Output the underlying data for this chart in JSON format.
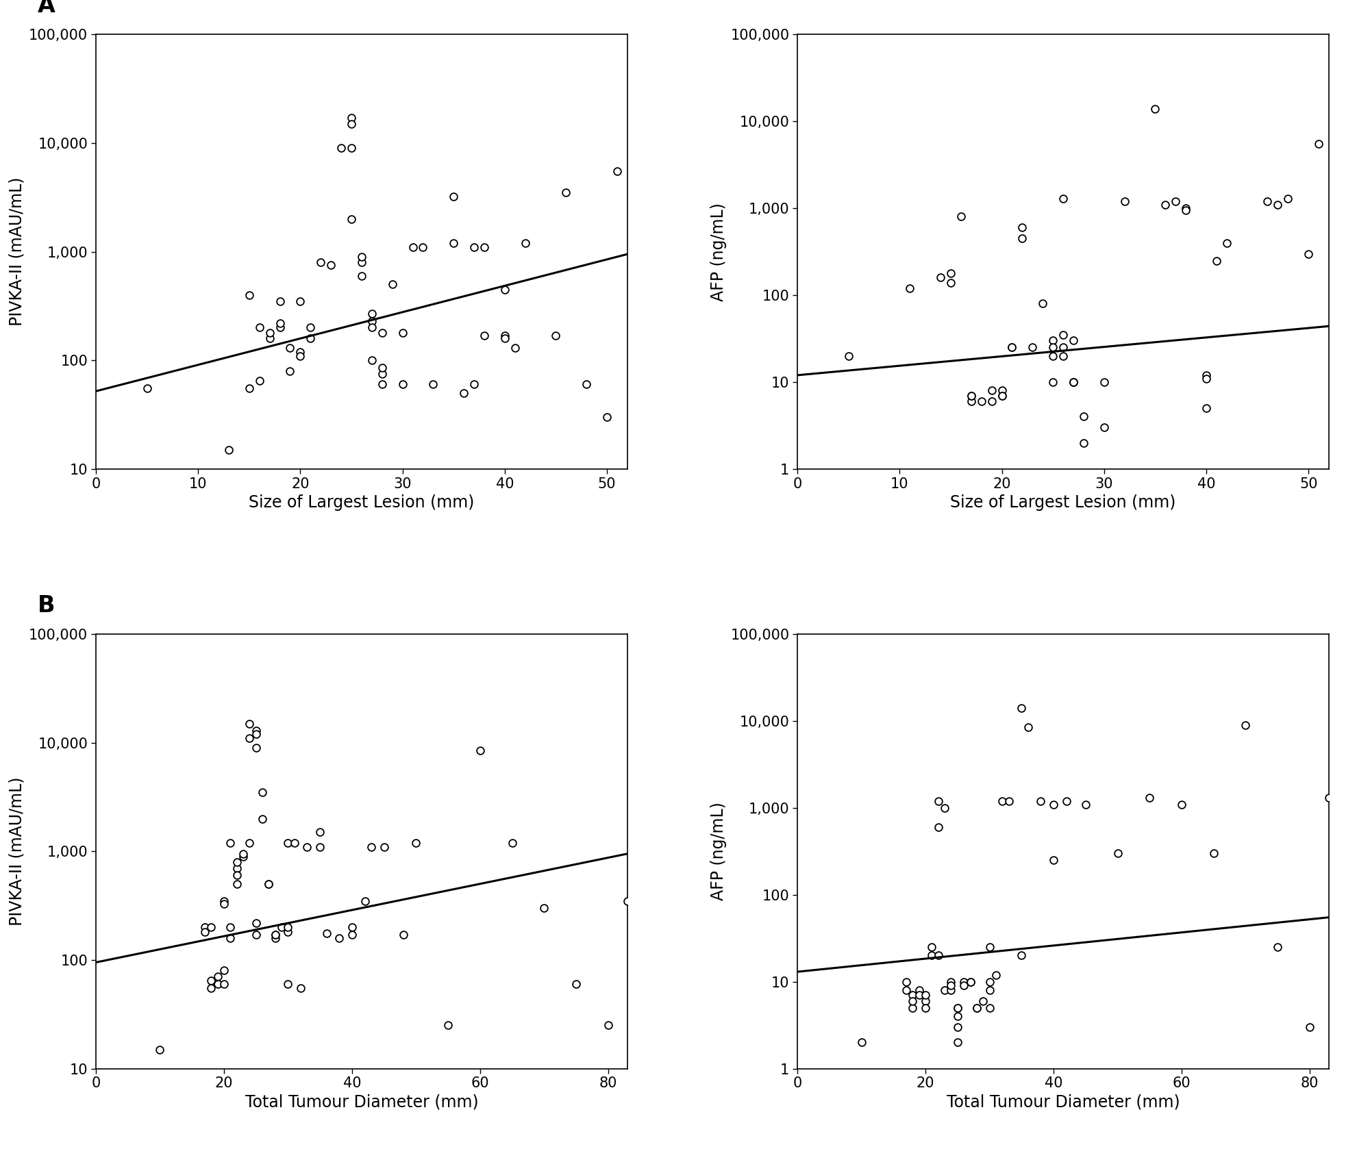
{
  "panel_A_pivka": {
    "x": [
      5,
      13,
      15,
      15,
      16,
      16,
      17,
      17,
      18,
      18,
      18,
      19,
      19,
      20,
      20,
      20,
      21,
      21,
      22,
      23,
      24,
      25,
      25,
      25,
      25,
      26,
      26,
      26,
      27,
      27,
      27,
      27,
      28,
      28,
      28,
      28,
      29,
      30,
      30,
      31,
      32,
      33,
      35,
      35,
      36,
      37,
      37,
      38,
      38,
      40,
      40,
      40,
      41,
      42,
      45,
      46,
      48,
      50,
      51
    ],
    "y": [
      55,
      15,
      400,
      55,
      65,
      200,
      160,
      180,
      200,
      220,
      350,
      80,
      130,
      350,
      120,
      110,
      160,
      200,
      800,
      750,
      9000,
      17000,
      15000,
      9000,
      2000,
      800,
      900,
      600,
      230,
      270,
      200,
      100,
      180,
      60,
      75,
      85,
      500,
      60,
      180,
      1100,
      1100,
      60,
      3200,
      1200,
      50,
      60,
      1100,
      1100,
      170,
      450,
      170,
      160,
      130,
      1200,
      170,
      3500,
      60,
      30,
      5500
    ],
    "line_x": [
      0,
      52
    ],
    "line_y": [
      52,
      950
    ],
    "xlabel": "Size of Largest Lesion (mm)",
    "ylabel": "PIVKA-II (mAU/mL)",
    "ylim": [
      10,
      100000
    ],
    "xlim": [
      0,
      52
    ],
    "yticks": [
      10,
      100,
      1000,
      10000,
      100000
    ],
    "ytick_labels": [
      "10",
      "100",
      "1,000",
      "10,000",
      "100,000"
    ],
    "xticks": [
      0,
      10,
      20,
      30,
      40,
      50
    ]
  },
  "panel_A_afp": {
    "x": [
      5,
      11,
      14,
      15,
      15,
      16,
      17,
      17,
      17,
      18,
      19,
      19,
      20,
      20,
      20,
      21,
      21,
      22,
      22,
      23,
      24,
      25,
      25,
      25,
      25,
      26,
      26,
      26,
      26,
      27,
      27,
      27,
      27,
      28,
      28,
      30,
      30,
      32,
      35,
      36,
      37,
      38,
      38,
      40,
      40,
      40,
      41,
      42,
      46,
      47,
      48,
      50,
      51
    ],
    "y": [
      20,
      120,
      160,
      140,
      180,
      800,
      6,
      7,
      7,
      6,
      6,
      8,
      8,
      7,
      7,
      25,
      25,
      600,
      450,
      25,
      80,
      30,
      25,
      20,
      10,
      35,
      25,
      20,
      1300,
      10,
      10,
      10,
      30,
      4,
      2,
      3,
      10,
      1200,
      14000,
      1100,
      1200,
      1000,
      950,
      5,
      12,
      11,
      250,
      400,
      1200,
      1100,
      1300,
      300,
      5500
    ],
    "line_x": [
      0,
      52
    ],
    "line_y": [
      12,
      44
    ],
    "xlabel": "Size of Largest Lesion (mm)",
    "ylabel": "AFP (ng/mL)",
    "ylim": [
      1,
      100000
    ],
    "xlim": [
      0,
      52
    ],
    "yticks": [
      1,
      10,
      100,
      1000,
      10000,
      100000
    ],
    "ytick_labels": [
      "1",
      "10",
      "100",
      "1,000",
      "10,000",
      "100,000"
    ],
    "xticks": [
      0,
      10,
      20,
      30,
      40,
      50
    ]
  },
  "panel_B_pivka": {
    "x": [
      10,
      17,
      17,
      18,
      18,
      18,
      19,
      19,
      20,
      20,
      20,
      20,
      21,
      21,
      21,
      22,
      22,
      22,
      22,
      23,
      23,
      24,
      24,
      24,
      25,
      25,
      25,
      25,
      25,
      26,
      26,
      27,
      27,
      28,
      28,
      28,
      29,
      30,
      30,
      30,
      30,
      31,
      32,
      33,
      35,
      35,
      36,
      38,
      40,
      40,
      42,
      43,
      45,
      48,
      50,
      55,
      60,
      65,
      70,
      75,
      80,
      83
    ],
    "y": [
      15,
      200,
      180,
      200,
      55,
      65,
      60,
      70,
      60,
      80,
      350,
      330,
      200,
      1200,
      160,
      700,
      600,
      800,
      500,
      900,
      950,
      1200,
      11000,
      15000,
      220,
      170,
      13000,
      12000,
      9000,
      3500,
      2000,
      500,
      500,
      160,
      170,
      170,
      200,
      60,
      180,
      200,
      1200,
      1200,
      55,
      1100,
      1100,
      1500,
      175,
      160,
      170,
      200,
      350,
      1100,
      1100,
      170,
      1200,
      25,
      8500,
      1200,
      300,
      60,
      25,
      350
    ],
    "line_x": [
      0,
      83
    ],
    "line_y": [
      95,
      950
    ],
    "xlabel": "Total Tumour Diameter (mm)",
    "ylabel": "PIVKA-II (mAU/mL)",
    "ylim": [
      10,
      100000
    ],
    "xlim": [
      0,
      83
    ],
    "yticks": [
      10,
      100,
      1000,
      10000,
      100000
    ],
    "ytick_labels": [
      "10",
      "100",
      "1,000",
      "10,000",
      "100,000"
    ],
    "xticks": [
      0,
      20,
      40,
      60,
      80
    ]
  },
  "panel_B_afp": {
    "x": [
      10,
      17,
      17,
      18,
      18,
      18,
      19,
      19,
      20,
      20,
      20,
      21,
      21,
      22,
      22,
      22,
      23,
      23,
      24,
      24,
      24,
      25,
      25,
      25,
      25,
      25,
      26,
      26,
      27,
      27,
      28,
      28,
      29,
      30,
      30,
      30,
      30,
      31,
      32,
      33,
      35,
      35,
      36,
      38,
      40,
      40,
      42,
      45,
      50,
      55,
      60,
      65,
      70,
      75,
      80,
      83
    ],
    "y": [
      2,
      10,
      8,
      7,
      5,
      6,
      8,
      7,
      6,
      5,
      7,
      25,
      20,
      600,
      1200,
      20,
      1000,
      8,
      10,
      8,
      9,
      5,
      5,
      3,
      4,
      2,
      10,
      9,
      10,
      10,
      5,
      5,
      6,
      5,
      8,
      25,
      10,
      12,
      1200,
      1200,
      20,
      14000,
      8500,
      1200,
      1100,
      250,
      1200,
      1100,
      300,
      1300,
      1100,
      300,
      9000,
      25,
      3,
      1300
    ],
    "line_x": [
      0,
      83
    ],
    "line_y": [
      13,
      55
    ],
    "xlabel": "Total Tumour Diameter (mm)",
    "ylabel": "AFP (ng/mL)",
    "ylim": [
      1,
      100000
    ],
    "xlim": [
      0,
      83
    ],
    "yticks": [
      1,
      10,
      100,
      1000,
      10000,
      100000
    ],
    "ytick_labels": [
      "1",
      "10",
      "100",
      "1,000",
      "10,000",
      "100,000"
    ],
    "xticks": [
      0,
      20,
      40,
      60,
      80
    ]
  },
  "marker_size": 60,
  "marker_facecolor": "white",
  "marker_edgecolor": "black",
  "marker_edgewidth": 1.3,
  "line_color": "black",
  "line_width": 2.2,
  "font_size_label": 17,
  "font_size_tick": 15,
  "font_size_panel": 24,
  "background_color": "#ffffff"
}
